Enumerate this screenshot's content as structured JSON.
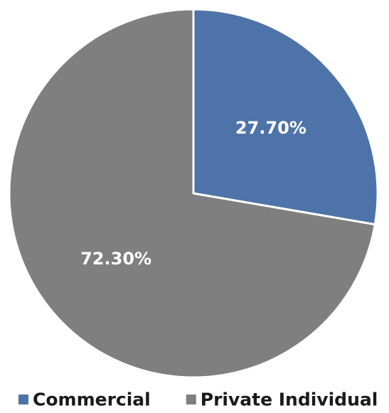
{
  "chart_data": {
    "type": "pie",
    "slices": [
      {
        "label": "Commercial",
        "value": 27.7,
        "display": "27.70%",
        "color": "#4e73a8"
      },
      {
        "label": "Private Individual",
        "value": 72.3,
        "display": "72.30%",
        "color": "#7f7f7f"
      }
    ],
    "start_angle_deg": 0,
    "direction": "clockwise",
    "legend_position": "bottom",
    "title": ""
  }
}
